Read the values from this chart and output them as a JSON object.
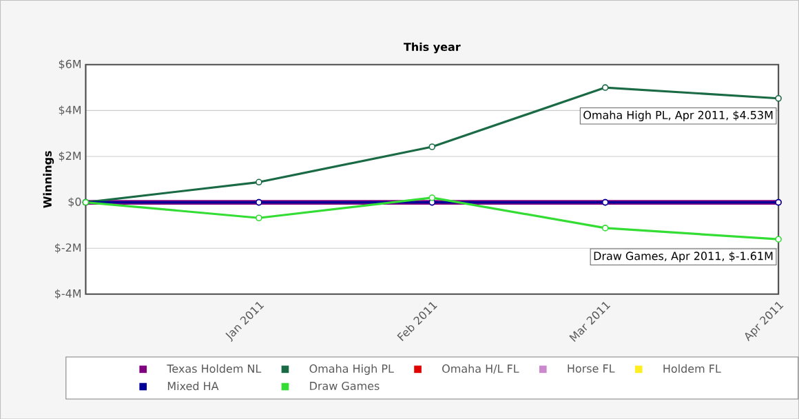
{
  "chart_data": {
    "type": "line",
    "title": "This year",
    "ylabel": "Winnings",
    "categories": [
      null,
      "Jan 2011",
      "Feb 2011",
      "Mar 2011",
      "Apr 2011"
    ],
    "series": [
      {
        "name": "Texas Holdem NL",
        "color": "#800080",
        "values": [
          0,
          0,
          0,
          0,
          0
        ]
      },
      {
        "name": "Omaha High PL",
        "color": "#1a6b45",
        "values": [
          0,
          0.88,
          2.42,
          5.0,
          4.53
        ]
      },
      {
        "name": "Omaha H/L FL",
        "color": "#e00000",
        "values": [
          null,
          null,
          null,
          null,
          null
        ]
      },
      {
        "name": "Horse FL",
        "color": "#cc88cc",
        "values": [
          null,
          null,
          null,
          null,
          null
        ]
      },
      {
        "name": "Holdem FL",
        "color": "#ffee22",
        "values": [
          null,
          null,
          null,
          null,
          null
        ]
      },
      {
        "name": "Mixed HA",
        "color": "#000099",
        "values": [
          0,
          0,
          0,
          0,
          0
        ]
      },
      {
        "name": "Draw Games",
        "color": "#33dd33",
        "values": [
          0,
          -0.68,
          0.2,
          -1.12,
          -1.61
        ]
      }
    ],
    "ylim": [
      -4,
      6
    ],
    "yticks": [
      {
        "value": -4,
        "label": "$-4M"
      },
      {
        "value": -2,
        "label": "$-2M"
      },
      {
        "value": 0,
        "label": "$0"
      },
      {
        "value": 2,
        "label": "$2M"
      },
      {
        "value": 4,
        "label": "$4M"
      },
      {
        "value": 6,
        "label": "$6M"
      }
    ],
    "grid": "y",
    "legend": "bottom",
    "marker": "circle",
    "line_style": "solid",
    "annotations": [
      {
        "text": "Omaha High PL, Apr 2011, $4.53M",
        "x": "Apr 2011",
        "y": 4.53
      },
      {
        "text": "Draw Games, Apr 2011, $-1.61M",
        "x": "Apr 2011",
        "y": -1.61
      }
    ]
  }
}
